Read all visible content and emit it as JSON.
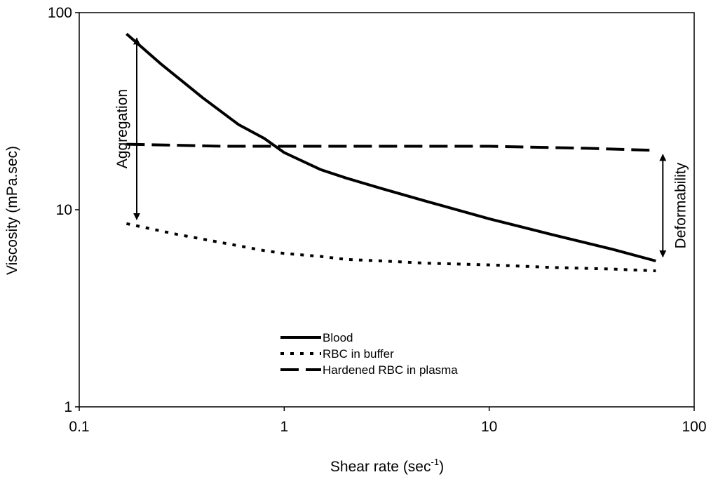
{
  "chart_data": {
    "type": "line",
    "xlabel": "Shear rate (sec",
    "xlabel_sup": "-1",
    "xlabel_close": ")",
    "ylabel": "Viscosity (mPa.sec)",
    "x_scale": "log",
    "y_scale": "log",
    "xlim": [
      0.1,
      100
    ],
    "ylim": [
      1,
      100
    ],
    "x_ticks": [
      0.1,
      1,
      10,
      100
    ],
    "x_tick_labels": [
      "0.1",
      "1",
      "10",
      "100"
    ],
    "y_ticks": [
      1,
      10,
      100
    ],
    "y_tick_labels": [
      "1",
      "10",
      "100"
    ],
    "grid": false,
    "legend_position": "bottom-center",
    "series": [
      {
        "name": "Blood",
        "style": "solid",
        "x": [
          0.17,
          0.25,
          0.4,
          0.6,
          0.8,
          1.0,
          1.5,
          2,
          3,
          5,
          10,
          20,
          40,
          65
        ],
        "y": [
          78,
          55,
          37,
          27,
          23,
          19.5,
          16,
          14.5,
          12.8,
          11,
          9,
          7.5,
          6.3,
          5.5
        ]
      },
      {
        "name": "RBC in buffer",
        "style": "dotted",
        "x": [
          0.17,
          0.3,
          0.5,
          0.8,
          1.0,
          1.5,
          2,
          3,
          5,
          10,
          20,
          40,
          65
        ],
        "y": [
          8.5,
          7.5,
          6.8,
          6.2,
          6.0,
          5.8,
          5.6,
          5.5,
          5.35,
          5.25,
          5.1,
          5.0,
          4.9
        ]
      },
      {
        "name": "Hardened RBC in plasma",
        "style": "dashed",
        "x": [
          0.17,
          0.5,
          1,
          3,
          10,
          30,
          65
        ],
        "y": [
          21.5,
          21,
          21,
          21,
          21,
          20.5,
          20
        ]
      }
    ],
    "annotations": [
      {
        "text": "Aggregation",
        "x": 0.2,
        "y_from": 78,
        "y_to": 8.5
      },
      {
        "text": "Deformability",
        "x": 65,
        "y_from": 20,
        "y_to": 5.5
      }
    ]
  }
}
